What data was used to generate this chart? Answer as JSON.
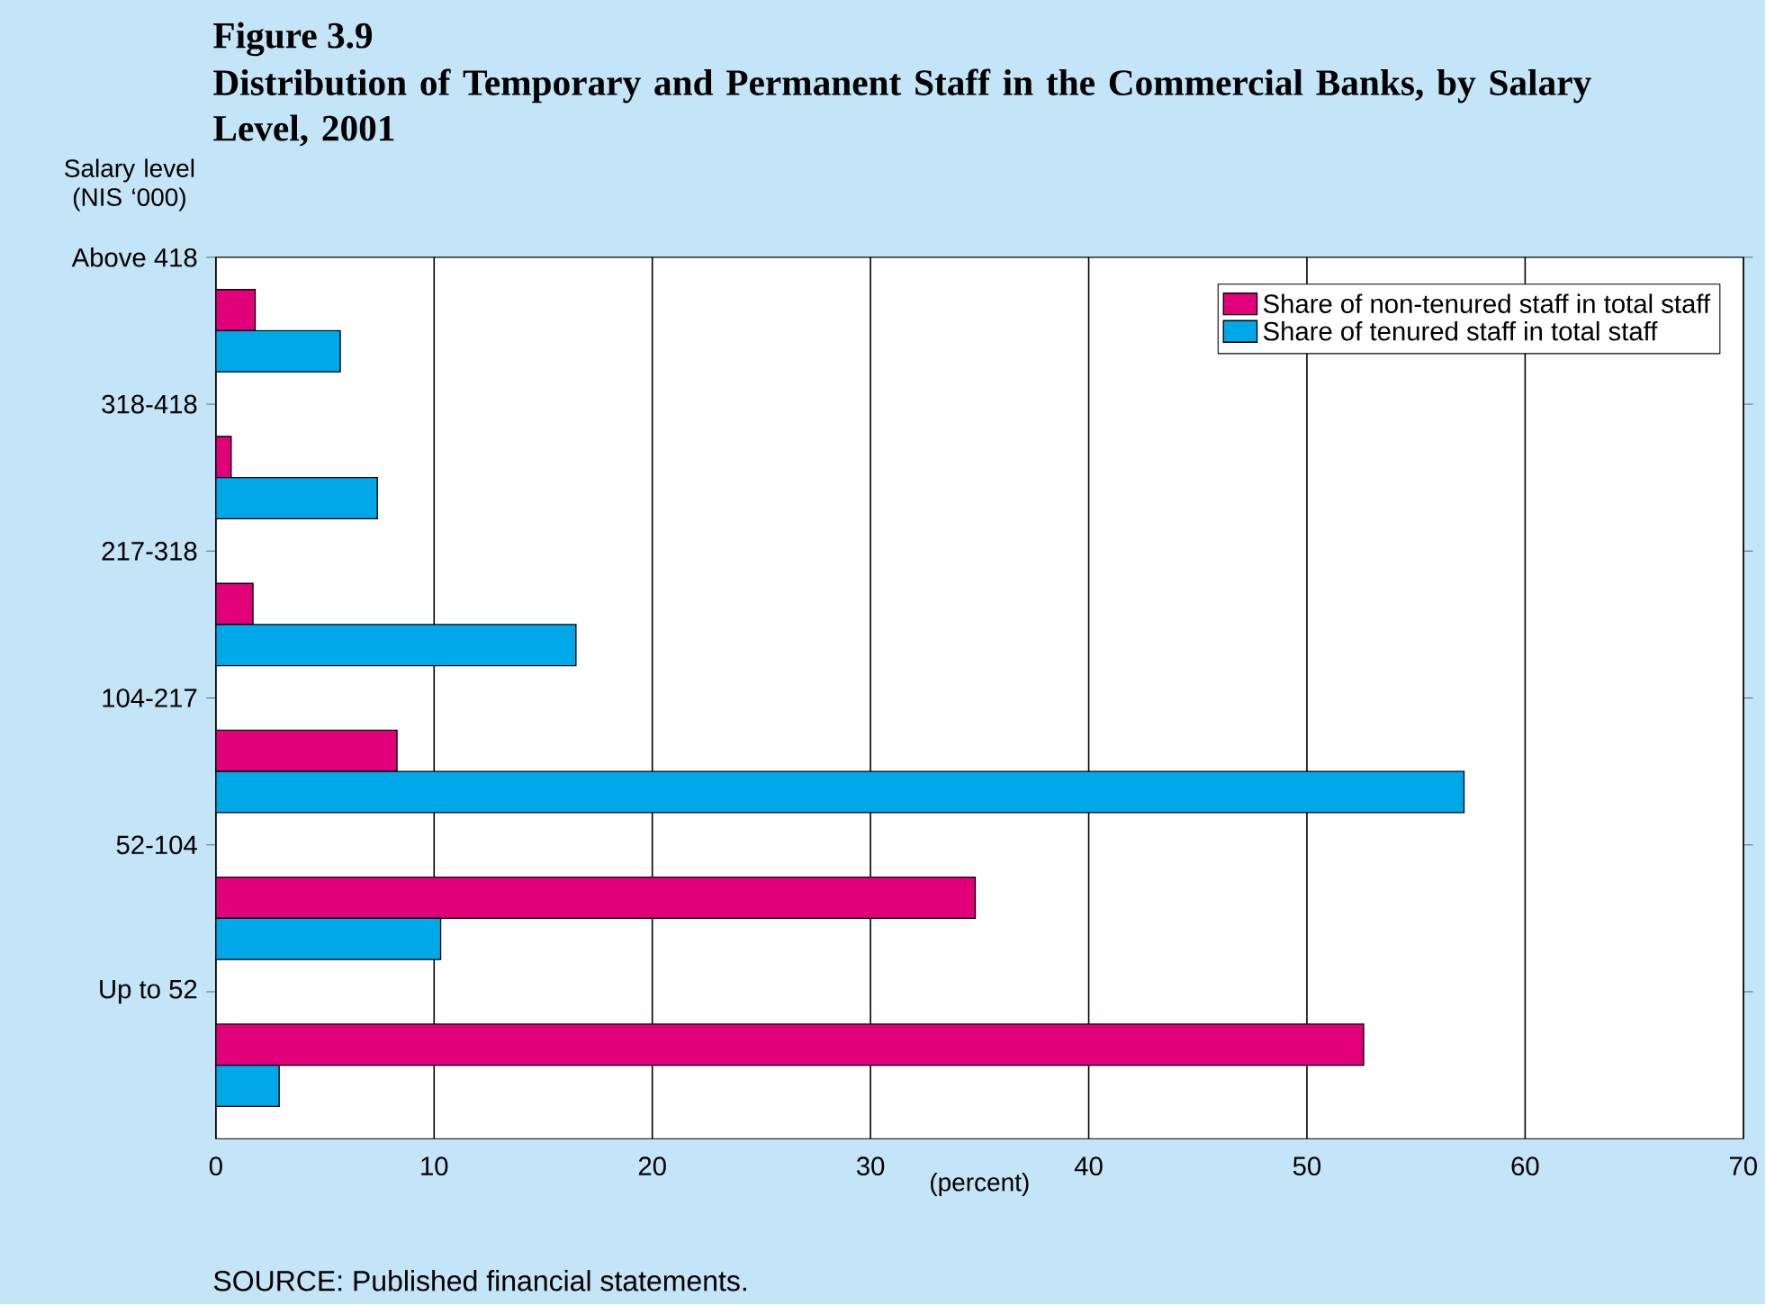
{
  "chart_data": {
    "type": "bar",
    "orientation": "horizontal",
    "title": "Figure 3.9",
    "subtitle": "Distribution of Temporary and Permanent Staff in the Commercial Banks, by Salary Level, 2001",
    "ylabel": "Salary level (NIS ‘000)",
    "xlabel": "(percent)",
    "categories": [
      "Above 418",
      "318-418",
      "217-318",
      "104-217",
      "52-104",
      "Up to 52"
    ],
    "series": [
      {
        "name": "Share of non-tenured staff in total staff",
        "color": "#e2007a",
        "values": [
          1.8,
          0.7,
          1.7,
          8.3,
          34.8,
          52.6
        ]
      },
      {
        "name": "Share of tenured staff in total staff",
        "color": "#00a8e8",
        "values": [
          5.7,
          7.4,
          16.5,
          57.2,
          10.3,
          2.9
        ]
      }
    ],
    "xlim": [
      0,
      70
    ],
    "xticks": [
      0,
      10,
      20,
      30,
      40,
      50,
      60,
      70
    ],
    "grid": "x",
    "legend": "top right",
    "annotations": [
      "SOURCE: Published financial statements."
    ]
  }
}
